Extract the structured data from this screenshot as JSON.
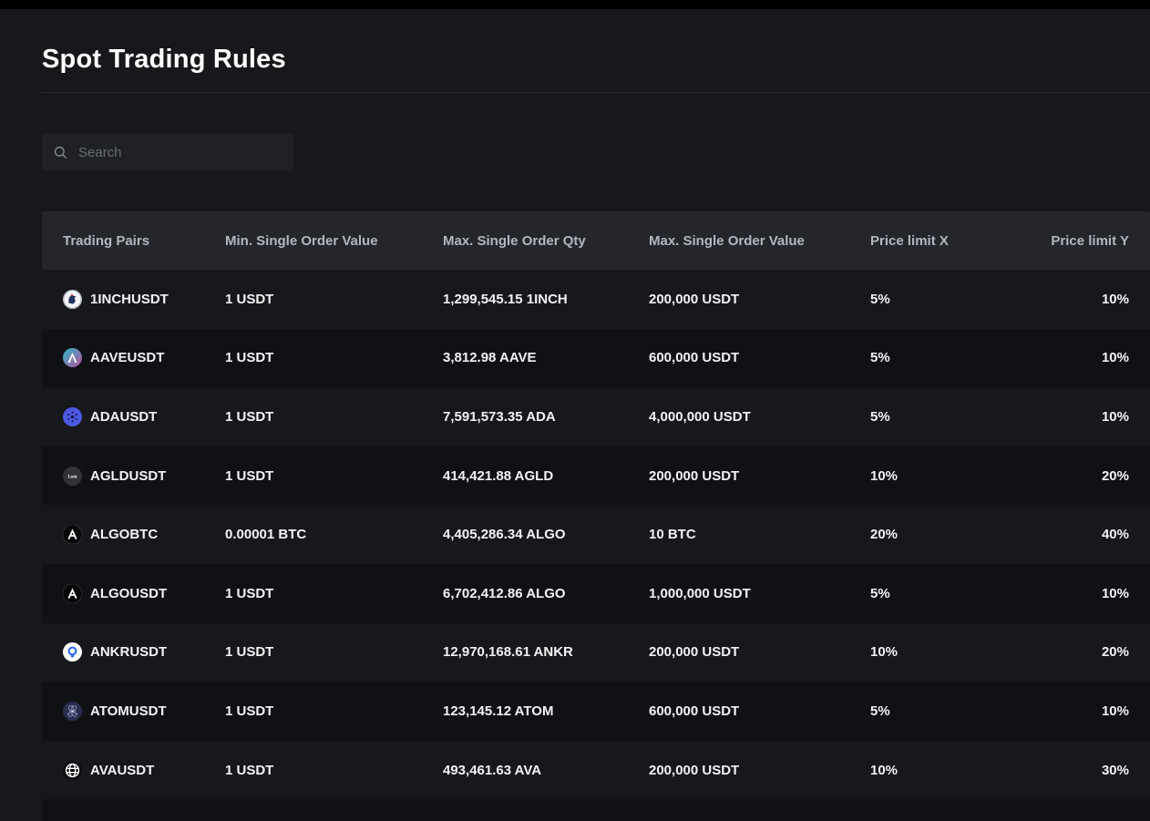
{
  "page": {
    "title": "Spot Trading Rules"
  },
  "search": {
    "placeholder": "Search",
    "icon": "search-icon"
  },
  "colors": {
    "page_background": "#17181b",
    "top_bar": "#000000",
    "table_header_background": "#24262c",
    "row_alternate_background": "#101115",
    "header_text": "#b2b7bf",
    "cell_text": "#f2f3f5",
    "aave_gradient": [
      "#2EBAC6",
      "#B6509E"
    ],
    "ada_blue": "#4c59e3",
    "ankr_blue": "#356DF3"
  },
  "table": {
    "columns": [
      "Trading Pairs",
      "Min. Single Order Value",
      "Max. Single Order Qty",
      "Max. Single Order Value",
      "Price limit X",
      "Price limit Y"
    ],
    "rows": [
      {
        "icon": "1inch-coin-icon",
        "pair": "1INCHUSDT",
        "min_value": "1 USDT",
        "max_qty": "1,299,545.15 1INCH",
        "max_value": "200,000 USDT",
        "limit_x": "5%",
        "limit_y": "10%"
      },
      {
        "icon": "aave-coin-icon",
        "pair": "AAVEUSDT",
        "min_value": "1 USDT",
        "max_qty": "3,812.98 AAVE",
        "max_value": "600,000 USDT",
        "limit_x": "5%",
        "limit_y": "10%"
      },
      {
        "icon": "ada-coin-icon",
        "pair": "ADAUSDT",
        "min_value": "1 USDT",
        "max_qty": "7,591,573.35 ADA",
        "max_value": "4,000,000 USDT",
        "limit_x": "5%",
        "limit_y": "10%"
      },
      {
        "icon": "agld-coin-icon",
        "pair": "AGLDUSDT",
        "min_value": "1 USDT",
        "max_qty": "414,421.88 AGLD",
        "max_value": "200,000 USDT",
        "limit_x": "10%",
        "limit_y": "20%"
      },
      {
        "icon": "algo-coin-icon",
        "pair": "ALGOBTC",
        "min_value": "0.00001 BTC",
        "max_qty": "4,405,286.34 ALGO",
        "max_value": "10 BTC",
        "limit_x": "20%",
        "limit_y": "40%"
      },
      {
        "icon": "algo-coin-icon",
        "pair": "ALGOUSDT",
        "min_value": "1 USDT",
        "max_qty": "6,702,412.86 ALGO",
        "max_value": "1,000,000 USDT",
        "limit_x": "5%",
        "limit_y": "10%"
      },
      {
        "icon": "ankr-coin-icon",
        "pair": "ANKRUSDT",
        "min_value": "1 USDT",
        "max_qty": "12,970,168.61 ANKR",
        "max_value": "200,000 USDT",
        "limit_x": "10%",
        "limit_y": "20%"
      },
      {
        "icon": "atom-coin-icon",
        "pair": "ATOMUSDT",
        "min_value": "1 USDT",
        "max_qty": "123,145.12 ATOM",
        "max_value": "600,000 USDT",
        "limit_x": "5%",
        "limit_y": "10%"
      },
      {
        "icon": "ava-coin-icon",
        "pair": "AVAUSDT",
        "min_value": "1 USDT",
        "max_qty": "493,461.63 AVA",
        "max_value": "200,000 USDT",
        "limit_x": "10%",
        "limit_y": "30%"
      }
    ]
  }
}
